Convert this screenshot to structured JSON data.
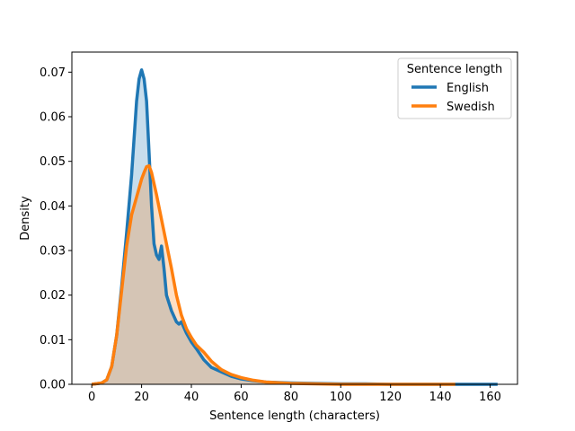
{
  "chart_data": {
    "type": "area",
    "xlabel": "Sentence length (characters)",
    "ylabel": "Density",
    "xlim": [
      -8,
      171
    ],
    "ylim": [
      0,
      0.0745
    ],
    "xticks": [
      0,
      20,
      40,
      60,
      80,
      100,
      120,
      140,
      160
    ],
    "yticks": [
      0.0,
      0.01,
      0.02,
      0.03,
      0.04,
      0.05,
      0.06,
      0.07
    ],
    "ytick_labels": [
      "0.00",
      "0.01",
      "0.02",
      "0.03",
      "0.04",
      "0.05",
      "0.06",
      "0.07"
    ],
    "grid": false,
    "legend": {
      "title": "Sentence length",
      "placement": "upper right"
    },
    "series": [
      {
        "name": "English",
        "color": "#1f77b4",
        "fill": "#1f77b4",
        "x": [
          0,
          4,
          6,
          8,
          10,
          12,
          14,
          16,
          18,
          19,
          20,
          21,
          22,
          23,
          24,
          25,
          26,
          27,
          28,
          29,
          30,
          32,
          34,
          35,
          36,
          38,
          40,
          42,
          45,
          48,
          52,
          56,
          60,
          65,
          70,
          80,
          90,
          100,
          110,
          120,
          130,
          140,
          150,
          163
        ],
        "y": [
          0.0,
          0.0003,
          0.001,
          0.004,
          0.011,
          0.022,
          0.034,
          0.047,
          0.0635,
          0.0685,
          0.0705,
          0.0685,
          0.0635,
          0.052,
          0.04,
          0.0315,
          0.029,
          0.028,
          0.031,
          0.026,
          0.02,
          0.0165,
          0.014,
          0.0135,
          0.014,
          0.0115,
          0.0095,
          0.008,
          0.0055,
          0.0038,
          0.0028,
          0.0018,
          0.0012,
          0.0008,
          0.0005,
          0.0003,
          0.0002,
          0.0001,
          0.0001,
          0.0,
          0.0,
          0.0,
          0.0,
          0.0
        ]
      },
      {
        "name": "Swedish",
        "color": "#ff7f0e",
        "fill": "#ff7f0e",
        "x": [
          0,
          4,
          6,
          8,
          10,
          12,
          14,
          16,
          18,
          20,
          21,
          22,
          23,
          24,
          26,
          28,
          30,
          32,
          34,
          36,
          38,
          40,
          42,
          45,
          48,
          52,
          56,
          60,
          65,
          70,
          80,
          90,
          100,
          110,
          120,
          130,
          140,
          146
        ],
        "y": [
          0.0,
          0.0003,
          0.001,
          0.004,
          0.011,
          0.021,
          0.031,
          0.038,
          0.042,
          0.046,
          0.0475,
          0.0488,
          0.049,
          0.0475,
          0.0425,
          0.037,
          0.0315,
          0.026,
          0.02,
          0.0155,
          0.0125,
          0.0105,
          0.0088,
          0.0072,
          0.0052,
          0.0033,
          0.0022,
          0.0015,
          0.0009,
          0.0005,
          0.0002,
          0.0001,
          0.0,
          0.0,
          0.0,
          0.0,
          0.0,
          0.0
        ]
      }
    ]
  }
}
